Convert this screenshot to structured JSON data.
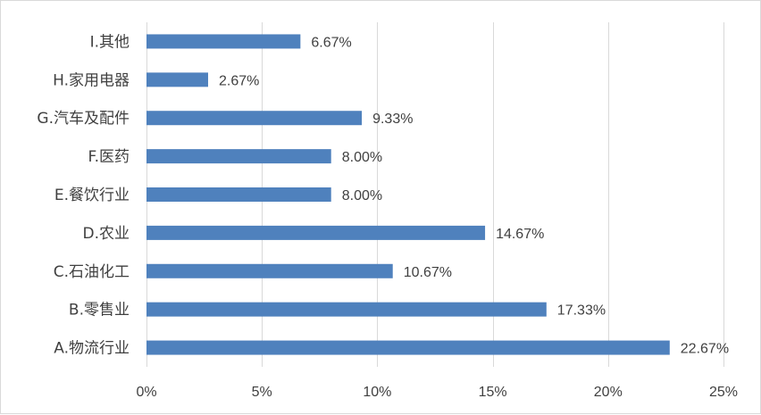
{
  "chart_data": {
    "type": "bar",
    "orientation": "horizontal",
    "categories": [
      "I.其他",
      "H.家用电器",
      "G.汽车及配件",
      "F.医药",
      "E.餐饮行业",
      "D.农业",
      "C.石油化工",
      "B.零售业",
      "A.物流行业"
    ],
    "values": [
      6.67,
      2.67,
      9.33,
      8.0,
      8.0,
      14.67,
      10.67,
      17.33,
      22.67
    ],
    "data_labels": [
      "6.67%",
      "2.67%",
      "9.33%",
      "8.00%",
      "8.00%",
      "14.67%",
      "10.67%",
      "17.33%",
      "22.67%"
    ],
    "x_ticks": [
      0,
      5,
      10,
      15,
      20,
      25
    ],
    "x_tick_labels": [
      "0%",
      "5%",
      "10%",
      "15%",
      "20%",
      "25%"
    ],
    "xlim": [
      0,
      25
    ],
    "grid": "vertical",
    "bar_color": "#4f81bd",
    "grid_color": "#d9d9d9",
    "legend": "none",
    "title": "",
    "xlabel": "",
    "ylabel": ""
  }
}
